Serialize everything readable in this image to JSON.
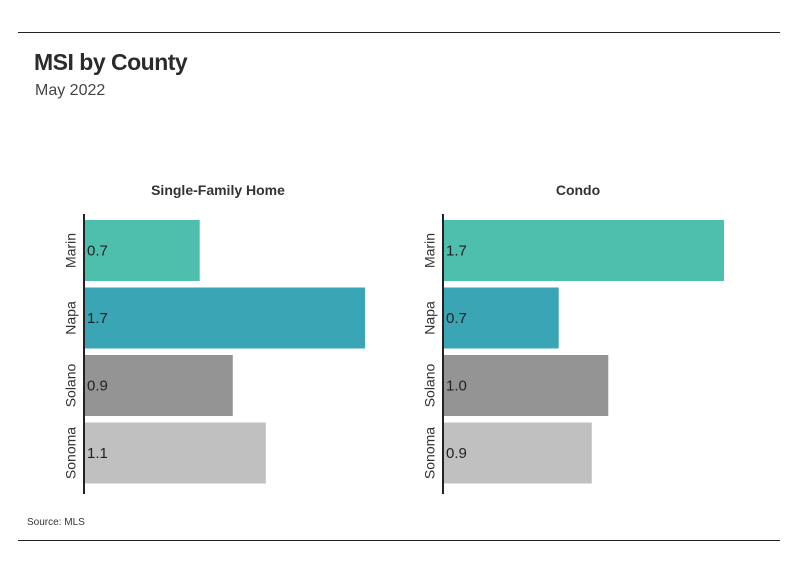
{
  "header": {
    "title": "MSI by County",
    "subtitle": "May 2022"
  },
  "footer": {
    "source": "Source:  MLS"
  },
  "chart_data": [
    {
      "type": "bar",
      "orientation": "horizontal",
      "title": "Single-Family Home",
      "categories": [
        "Marin",
        "Napa",
        "Solano",
        "Sonoma"
      ],
      "values": [
        0.7,
        1.7,
        0.9,
        1.1
      ],
      "colors": [
        "#4fbfad",
        "#3aa5b4",
        "#949494",
        "#c0c0c0"
      ],
      "xlim": [
        0,
        1.7
      ],
      "grid": false,
      "legend": "none"
    },
    {
      "type": "bar",
      "orientation": "horizontal",
      "title": "Condo",
      "categories": [
        "Marin",
        "Napa",
        "Solano",
        "Sonoma"
      ],
      "values": [
        1.7,
        0.7,
        1.0,
        0.9
      ],
      "colors": [
        "#4fbfad",
        "#3aa5b4",
        "#949494",
        "#c0c0c0"
      ],
      "xlim": [
        0,
        1.7
      ],
      "grid": false,
      "legend": "none"
    }
  ]
}
